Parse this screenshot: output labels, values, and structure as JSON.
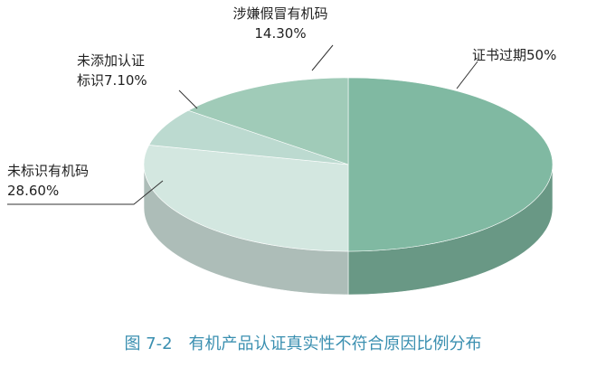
{
  "chart_data": {
    "type": "pie",
    "categories": [
      "证书过期",
      "未标识有机码",
      "未添加认证标识",
      "涉嫌假冒有机码"
    ],
    "values": [
      50,
      28.6,
      7.1,
      14.3
    ],
    "value_labels": [
      "50%",
      "28.60%",
      "7.10%",
      "14.30%"
    ],
    "colors": [
      "#80b9a2",
      "#d3e7e0",
      "#bcdad0",
      "#a0cbb8"
    ],
    "caption": "图 7-2　有机产品认证真实性不符合原因比例分布"
  }
}
